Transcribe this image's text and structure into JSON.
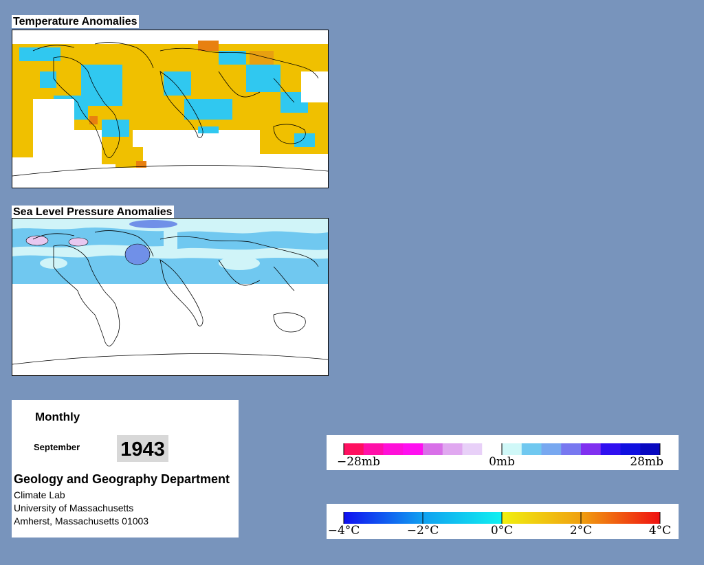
{
  "panels": {
    "temperature_title": "Temperature Anomalies",
    "pressure_title": "Sea Level Pressure Anomalies"
  },
  "info": {
    "frequency": "Monthly",
    "month": "September",
    "year": "1943",
    "department": "Geology and Geography Department",
    "lab": "Climate Lab",
    "university": "University of Massachusetts",
    "address": "Amherst, Massachusetts 01003"
  },
  "pressure_legend": {
    "unit": "mb",
    "labels": [
      "−28mb",
      "0mb",
      "28mb"
    ],
    "colors": [
      "#ff1060",
      "#ff10a8",
      "#ff10d8",
      "#ff10f0",
      "#d870e8",
      "#e0a8f0",
      "#e8d0f8",
      "#ffffff",
      "#d0f8f8",
      "#70c8f0",
      "#78a8f0",
      "#7878f0",
      "#8030f0",
      "#3010f0",
      "#1010e0",
      "#0808c0"
    ]
  },
  "temperature_legend": {
    "unit": "°C",
    "labels": [
      "−4°C",
      "−2°C",
      "0°C",
      "2°C",
      "4°C"
    ],
    "colors": [
      "#1010f0",
      "#10a0f0",
      "#10f0f0",
      "#f0f010",
      "#f0a010",
      "#f01010"
    ]
  },
  "colors": {
    "background": "#7894bc",
    "warm": "#f0c000",
    "warm_strong": "#e88010",
    "cool": "#30c8f0",
    "pressure_low": "#7090e8",
    "pressure_light": "#d0f4f8",
    "pressure_mid": "#70c8f0"
  }
}
